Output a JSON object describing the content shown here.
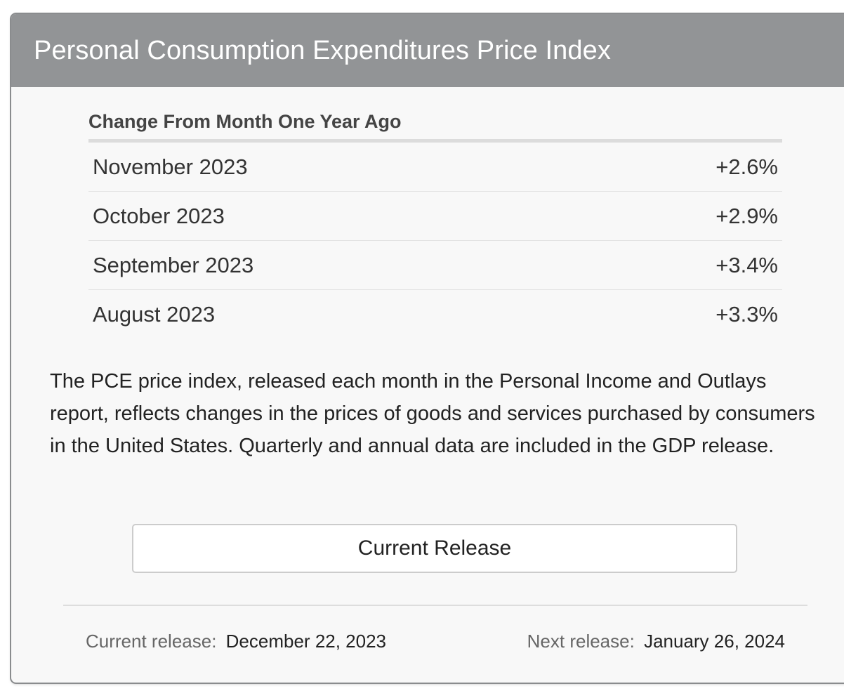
{
  "card": {
    "title": "Personal Consumption Expenditures Price Index"
  },
  "stats": {
    "caption": "Change From Month One Year Ago",
    "rows": [
      {
        "period": "November 2023",
        "value": "+2.6%"
      },
      {
        "period": "October 2023",
        "value": "+2.9%"
      },
      {
        "period": "September 2023",
        "value": "+3.4%"
      },
      {
        "period": "August 2023",
        "value": "+3.3%"
      }
    ]
  },
  "description": "The PCE price index, released each month in the Personal Income and Outlays report, reflects changes in the prices of goods and services purchased by consumers in the United States. Quarterly and annual data are included in the GDP release.",
  "button": {
    "label": "Current Release"
  },
  "footer": {
    "current_label": "Current release:",
    "current_date": "December 22, 2023",
    "next_label": "Next release:",
    "next_date": "January 26, 2024"
  },
  "colors": {
    "header_bg": "#929496",
    "card_bg": "#f8f8f8",
    "header_text": "#ffffff"
  }
}
